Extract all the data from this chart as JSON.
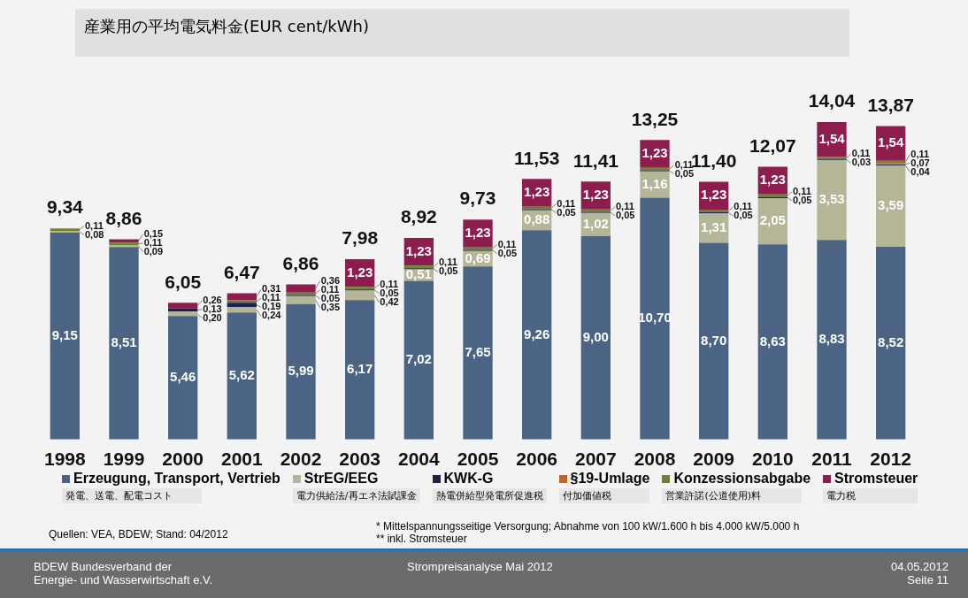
{
  "chart_data": {
    "type": "bar",
    "title": "産業用の平均電気料金(EUR cent/kWh)",
    "stacked": true,
    "legend": "bottom",
    "tick_labels": "x",
    "categories": [
      "1998",
      "1999",
      "2000",
      "2001",
      "2002",
      "2003",
      "2004",
      "2005",
      "2006",
      "2007",
      "2008",
      "2009",
      "2010",
      "2011",
      "2012"
    ],
    "series": [
      {
        "name": "Erzeugung, Transport, Vertrieb",
        "color": "#4b6483",
        "values": [
          9.15,
          8.51,
          5.46,
          5.62,
          5.99,
          6.17,
          7.02,
          7.65,
          9.26,
          9.0,
          10.7,
          8.7,
          8.63,
          8.83,
          8.52
        ],
        "value_labels": [
          "9,15",
          "8,51",
          "5,46",
          "5,62",
          "5,99",
          "6,17",
          "7,02",
          "7,65",
          "9,26",
          "9,00",
          "10,70",
          "8,70",
          "8,63",
          "8,83",
          "8,52"
        ]
      },
      {
        "name": "StrEG/EEG",
        "color": "#b5b597",
        "values": [
          0.08,
          0.09,
          0.2,
          0.24,
          0.35,
          0.42,
          0.51,
          0.69,
          0.88,
          1.02,
          1.16,
          1.31,
          2.05,
          3.53,
          3.59
        ],
        "value_labels": [
          "0,08",
          "0,09",
          "0,20",
          "0,24",
          "0,35",
          "0,42",
          "0,51",
          "0,69",
          "0,88",
          "1,02",
          "1,16",
          "1,31",
          "2,05",
          "3,53",
          "3,59"
        ]
      },
      {
        "name": "KWK-G",
        "color": "#1c2152",
        "values": [
          null,
          null,
          0.13,
          0.19,
          0.05,
          0.05,
          0.05,
          0.05,
          0.05,
          0.05,
          0.05,
          0.05,
          0.05,
          0.03,
          0.04
        ],
        "value_labels": [
          null,
          null,
          "0,13",
          "0,19",
          "0,05",
          "0,05",
          "0,05",
          "0,05",
          "0,05",
          "0,05",
          "0,05",
          "0,05",
          "0,05",
          "0,03",
          "0,04"
        ]
      },
      {
        "name": "§19-Umlage",
        "color": "#c8601e",
        "values": [
          null,
          null,
          null,
          null,
          null,
          null,
          null,
          null,
          null,
          null,
          null,
          null,
          null,
          null,
          0.07
        ],
        "value_labels": [
          null,
          null,
          null,
          null,
          null,
          null,
          null,
          null,
          null,
          null,
          null,
          null,
          null,
          null,
          "0,07"
        ]
      },
      {
        "name": "Konzessionsabgabe",
        "color": "#6b8234",
        "values": [
          0.11,
          0.11,
          null,
          0.11,
          0.11,
          0.11,
          0.11,
          0.11,
          0.11,
          0.11,
          0.11,
          0.11,
          0.11,
          0.11,
          0.11
        ],
        "value_labels": [
          "0,11",
          "0,11",
          null,
          "0,11",
          "0,11",
          "0,11",
          "0,11",
          "0,11",
          "0,11",
          "0,11",
          "0,11",
          "0,11",
          "0,11",
          "0,11",
          "0,11"
        ]
      },
      {
        "name": "Stromsteuer",
        "color": "#8c1d4d",
        "values": [
          null,
          0.15,
          0.26,
          0.31,
          0.36,
          1.23,
          1.23,
          1.23,
          1.23,
          1.23,
          1.23,
          1.23,
          1.23,
          1.54,
          1.54
        ],
        "value_labels": [
          null,
          "0,15",
          "0,26",
          "0,31",
          "0,36",
          "1,23",
          "1,23",
          "1,23",
          "1,23",
          "1,23",
          "1,23",
          "1,23",
          "1,23",
          "1,54",
          "1,54"
        ]
      }
    ],
    "totals": [
      "9,34",
      "8,86",
      "6,05",
      "6,47",
      "6,86",
      "7,98",
      "8,92",
      "9,73",
      "11,53",
      "11,41",
      "13,25",
      "11,40",
      "12,07",
      "14,04",
      "13,87"
    ],
    "annotations": [
      "発電、送電、配電コスト",
      "電力供給法/再エネ法賦課金",
      "熱電併給型発電所促進税",
      "付加価値税",
      "営業許諾(公道使用)料",
      "電力税",
      "Quellen: VEA, BDEW; Stand: 04/2012",
      "* Mittelspannungsseitige Versorgung; Abnahme von 100 kW/1.600 h bis 4.000 kW/5.000 h",
      "** inkl. Stromsteuer",
      "BDEW Bundesverband der\nEnergie- und Wasserwirtschaft e.V.",
      "Strompreisanalyse Mai 2012",
      "04.05.2012\nSeite 11"
    ]
  }
}
